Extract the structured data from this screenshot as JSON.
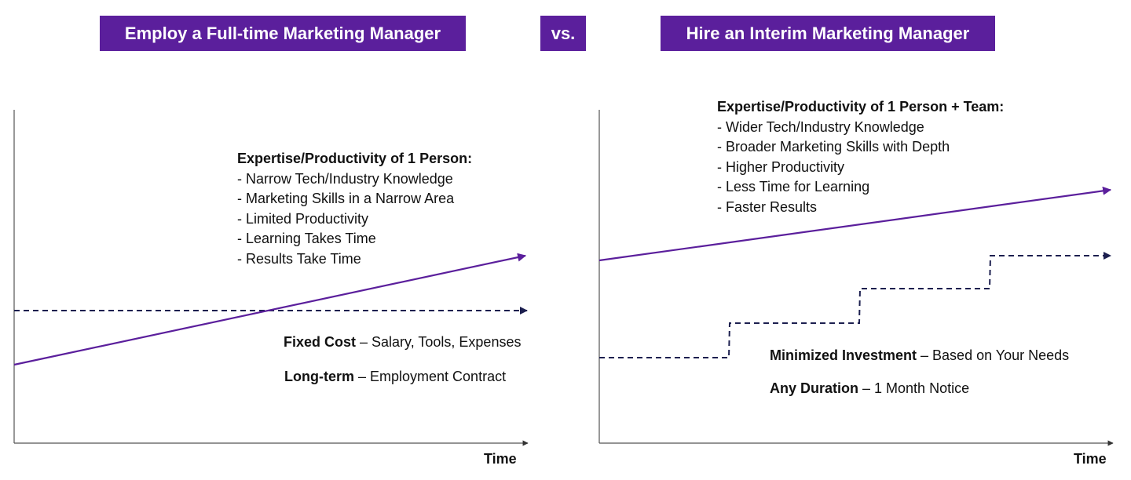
{
  "header": {
    "left_title": "Employ a Full-time Marketing Manager",
    "vs": "vs.",
    "right_title": "Hire an Interim Marketing Manager"
  },
  "colors": {
    "brand_purple": "#5b1f9c",
    "dashed_navy": "#1c1f4f",
    "axis_gray": "#555555"
  },
  "left_panel": {
    "heading": "Expertise/Productivity of 1 Person:",
    "bullets": [
      "- Narrow Tech/Industry Knowledge",
      "- Marketing Skills in a Narrow Area",
      "- Limited Productivity",
      "- Learning Takes Time",
      "- Results Take Time"
    ],
    "cost_label": "Fixed Cost",
    "cost_text": " – Salary, Tools, Expenses",
    "term_label": "Long-term",
    "term_text": " – Employment Contract",
    "x_axis_label": "Time"
  },
  "right_panel": {
    "heading": "Expertise/Productivity of 1 Person + Team:",
    "bullets": [
      "- Wider Tech/Industry Knowledge",
      "- Broader Marketing Skills with Depth",
      "- Higher Productivity",
      "- Less Time for Learning",
      "- Faster Results"
    ],
    "cost_label": "Minimized Investment",
    "cost_text": " – Based on Your Needs",
    "term_label": "Any Duration",
    "term_text": " – 1 Month Notice",
    "x_axis_label": "Time"
  }
}
